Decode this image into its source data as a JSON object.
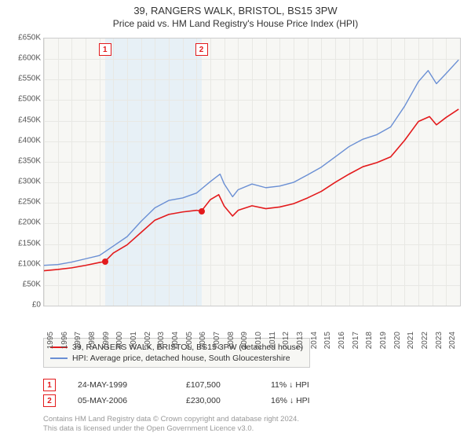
{
  "title": "39, RANGERS WALK, BRISTOL, BS15 3PW",
  "subtitle": "Price paid vs. HM Land Registry's House Price Index (HPI)",
  "chart": {
    "type": "line",
    "background_color": "#f7f7f4",
    "grid_color": "#e8e8e4",
    "border_color": "#cccccc",
    "shade_color": "#e4eef6",
    "shade_range_years": [
      1999.4,
      2006.35
    ],
    "xlim_years": [
      1995,
      2025
    ],
    "ylim": [
      0,
      650000
    ],
    "ytick_step": 50000,
    "ytick_labels": [
      "£0",
      "£50K",
      "£100K",
      "£150K",
      "£200K",
      "£250K",
      "£300K",
      "£350K",
      "£400K",
      "£450K",
      "£500K",
      "£550K",
      "£600K",
      "£650K"
    ],
    "xtick_years": [
      1995,
      1996,
      1997,
      1998,
      1999,
      2000,
      2001,
      2002,
      2003,
      2004,
      2005,
      2006,
      2007,
      2008,
      2009,
      2010,
      2011,
      2012,
      2013,
      2014,
      2015,
      2016,
      2017,
      2018,
      2019,
      2020,
      2021,
      2022,
      2023,
      2024
    ],
    "series": [
      {
        "name": "39, RANGERS WALK, BRISTOL, BS15 3PW (detached house)",
        "color": "#e31a1c",
        "line_width": 1.6,
        "data": [
          [
            1995,
            85000
          ],
          [
            1996,
            88000
          ],
          [
            1997,
            92000
          ],
          [
            1998,
            98000
          ],
          [
            1999,
            105000
          ],
          [
            1999.4,
            107500
          ],
          [
            2000,
            128000
          ],
          [
            2001,
            148000
          ],
          [
            2002,
            178000
          ],
          [
            2003,
            208000
          ],
          [
            2004,
            222000
          ],
          [
            2005,
            228000
          ],
          [
            2006,
            232000
          ],
          [
            2006.35,
            230000
          ],
          [
            2007,
            258000
          ],
          [
            2007.6,
            270000
          ],
          [
            2008,
            242000
          ],
          [
            2008.6,
            218000
          ],
          [
            2009,
            232000
          ],
          [
            2010,
            243000
          ],
          [
            2011,
            236000
          ],
          [
            2012,
            240000
          ],
          [
            2013,
            248000
          ],
          [
            2014,
            262000
          ],
          [
            2015,
            278000
          ],
          [
            2016,
            300000
          ],
          [
            2017,
            320000
          ],
          [
            2018,
            338000
          ],
          [
            2019,
            348000
          ],
          [
            2020,
            362000
          ],
          [
            2021,
            402000
          ],
          [
            2022,
            448000
          ],
          [
            2022.8,
            460000
          ],
          [
            2023.3,
            440000
          ],
          [
            2024,
            458000
          ],
          [
            2024.9,
            478000
          ]
        ]
      },
      {
        "name": "HPI: Average price, detached house, South Gloucestershire",
        "color": "#6a8fd4",
        "line_width": 1.4,
        "data": [
          [
            1995,
            98000
          ],
          [
            1996,
            100000
          ],
          [
            1997,
            106000
          ],
          [
            1998,
            114000
          ],
          [
            1999,
            122000
          ],
          [
            2000,
            145000
          ],
          [
            2001,
            168000
          ],
          [
            2002,
            205000
          ],
          [
            2003,
            238000
          ],
          [
            2004,
            256000
          ],
          [
            2005,
            262000
          ],
          [
            2006,
            274000
          ],
          [
            2007,
            302000
          ],
          [
            2007.7,
            320000
          ],
          [
            2008,
            296000
          ],
          [
            2008.6,
            265000
          ],
          [
            2009,
            282000
          ],
          [
            2010,
            296000
          ],
          [
            2011,
            287000
          ],
          [
            2012,
            291000
          ],
          [
            2013,
            300000
          ],
          [
            2014,
            318000
          ],
          [
            2015,
            337000
          ],
          [
            2016,
            362000
          ],
          [
            2017,
            387000
          ],
          [
            2018,
            405000
          ],
          [
            2019,
            416000
          ],
          [
            2020,
            435000
          ],
          [
            2021,
            485000
          ],
          [
            2022,
            545000
          ],
          [
            2022.7,
            572000
          ],
          [
            2023.3,
            540000
          ],
          [
            2024,
            565000
          ],
          [
            2024.9,
            598000
          ]
        ]
      }
    ],
    "sale_markers": [
      {
        "n": "1",
        "year": 1999.4,
        "price": 107500,
        "color": "#e31a1c"
      },
      {
        "n": "2",
        "year": 2006.35,
        "price": 230000,
        "color": "#e31a1c"
      }
    ]
  },
  "legend": [
    {
      "color": "#e31a1c",
      "label": "39, RANGERS WALK, BRISTOL, BS15 3PW (detached house)"
    },
    {
      "color": "#6a8fd4",
      "label": "HPI: Average price, detached house, South Gloucestershire"
    }
  ],
  "sales": [
    {
      "n": "1",
      "color": "#e31a1c",
      "date": "24-MAY-1999",
      "price": "£107,500",
      "pct": "11% ↓ HPI"
    },
    {
      "n": "2",
      "color": "#e31a1c",
      "date": "05-MAY-2006",
      "price": "£230,000",
      "pct": "16% ↓ HPI"
    }
  ],
  "footer_line1": "Contains HM Land Registry data © Crown copyright and database right 2024.",
  "footer_line2": "This data is licensed under the Open Government Licence v3.0."
}
